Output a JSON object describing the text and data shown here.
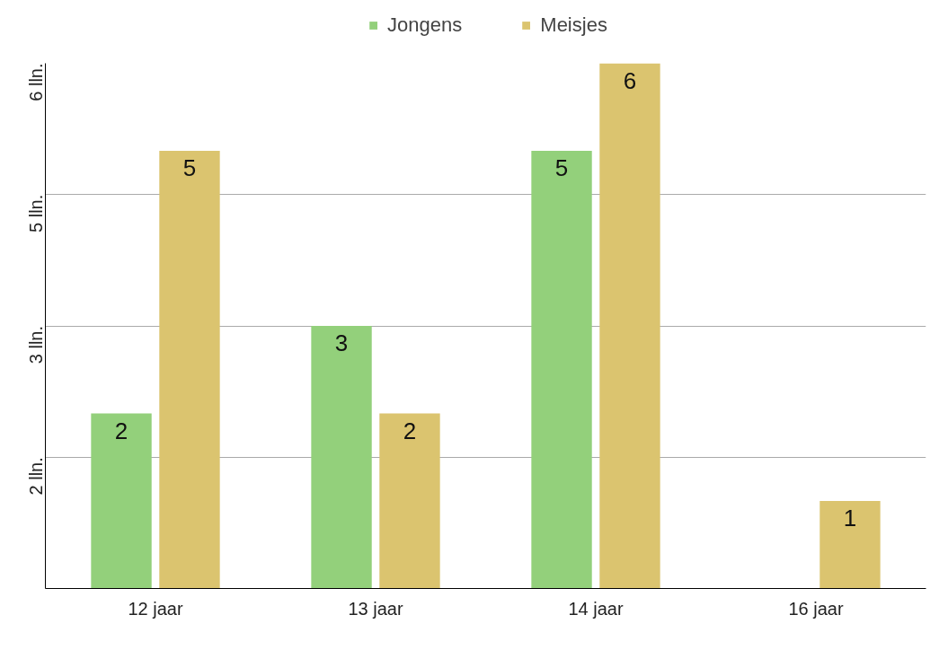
{
  "chart_data": {
    "type": "bar",
    "categories": [
      "12 jaar",
      "13 jaar",
      "14 jaar",
      "16 jaar"
    ],
    "series": [
      {
        "name": "Jongens",
        "color": "#93d07b",
        "values": [
          2,
          3,
          5,
          null
        ]
      },
      {
        "name": "Meisjes",
        "color": "#dbc46f",
        "values": [
          5,
          2,
          6,
          1
        ]
      }
    ],
    "ylim": [
      0,
      6
    ],
    "yticks": [
      {
        "value": 1.5,
        "label": "2 lln."
      },
      {
        "value": 3,
        "label": "3 lln."
      },
      {
        "value": 4.5,
        "label": "5 lln."
      },
      {
        "value": 6,
        "label": "6 lln."
      }
    ],
    "grid": "y",
    "legend": "top",
    "data_labels": true
  }
}
